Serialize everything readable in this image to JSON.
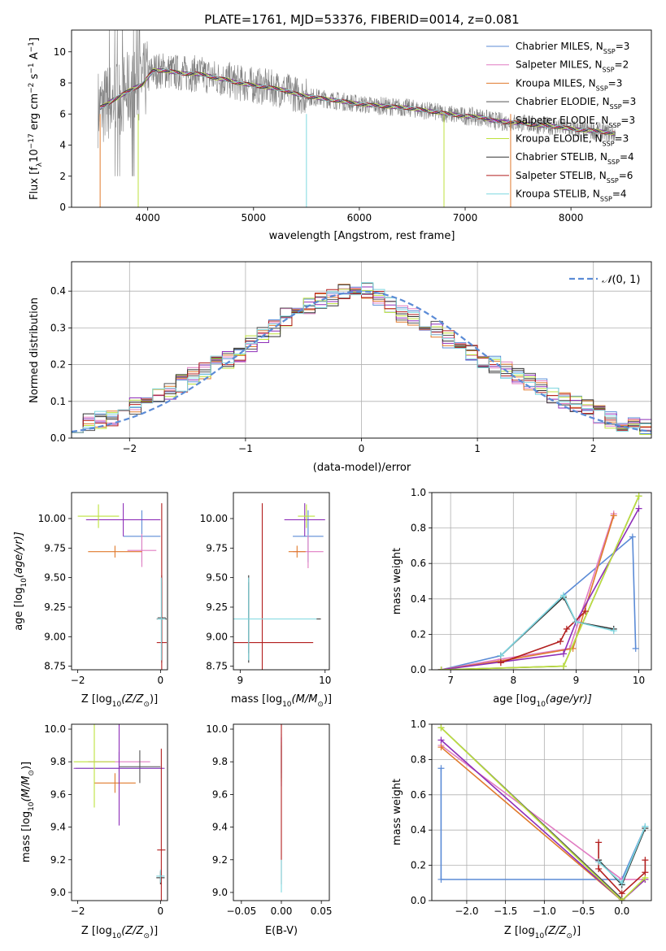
{
  "figure_title": "PLATE=1761, MJD=53376, FIBERID=0014, z=0.081",
  "colors": {
    "Chabrier MILES": "#5b8bd6",
    "Salpeter MILES": "#e07cc2",
    "Kroupa MILES": "#e07a2c",
    "Chabrier ELODIE": "#555555",
    "Salpeter ELODIE": "#8e2eb8",
    "Kroupa ELODIE": "#bde13c",
    "Chabrier STELIB": "#333333",
    "Salpeter STELIB": "#b21e1e",
    "Kroupa STELIB": "#7fd8e0",
    "data": "#808080",
    "normal": "#5b8bd6"
  },
  "chart_data": [
    {
      "id": "spectrum",
      "type": "line",
      "xlabel": "wavelength [Angstrom, rest frame]",
      "ylabel": "Flux [f",
      "ylabel_sub": "λ",
      "ylabel_rest": "10",
      "ylabel_sup1": "−17",
      "ylabel_mid": " erg cm",
      "ylabel_sup2": "−2",
      "ylabel_mid2": " s",
      "ylabel_sup3": "−1",
      "ylabel_mid3": " A",
      "ylabel_sup4": "−1",
      "ylabel_end": "]",
      "xlim": [
        3280,
        8760
      ],
      "ylim": [
        0,
        11.4
      ],
      "xticks": [
        4000,
        5000,
        6000,
        7000,
        8000
      ],
      "yticks": [
        0,
        2,
        4,
        6,
        8,
        10
      ],
      "legend_position": "top-right",
      "legend": [
        {
          "name": "Chabrier MILES",
          "sub": "SSP",
          "n": "=3"
        },
        {
          "name": "Salpeter MILES",
          "sub": "SSP",
          "n": "=2"
        },
        {
          "name": "Kroupa MILES",
          "sub": "SSP",
          "n": "=3"
        },
        {
          "name": "Chabrier ELODIE",
          "sub": "SSP",
          "n": "=3"
        },
        {
          "name": "Salpeter ELODIE",
          "sub": "SSP",
          "n": "=3"
        },
        {
          "name": "Kroupa ELODIE",
          "sub": "SSP",
          "n": "=3"
        },
        {
          "name": "Chabrier STELIB",
          "sub": "SSP",
          "n": "=4"
        },
        {
          "name": "Salpeter STELIB",
          "sub": "SSP",
          "n": "=6"
        },
        {
          "name": "Kroupa STELIB",
          "sub": "SSP",
          "n": "=4"
        }
      ],
      "model_curve": {
        "x": [
          3550,
          3650,
          3750,
          3850,
          3950,
          4050,
          4150,
          4250,
          4350,
          4450,
          4550,
          4650,
          4750,
          4850,
          4950,
          5050,
          5150,
          5250,
          5350,
          5450,
          5550,
          5650,
          5750,
          5850,
          5950,
          6050,
          6150,
          6250,
          6350,
          6450,
          6550,
          6650,
          6750,
          6850,
          6950,
          7050,
          7150,
          7250,
          7350,
          7450,
          7550,
          7650,
          7750,
          7850,
          7950,
          8050,
          8150,
          8250,
          8350,
          8450
        ],
        "y": [
          6.4,
          6.8,
          7.2,
          7.6,
          7.9,
          8.8,
          8.8,
          8.7,
          8.6,
          8.6,
          8.5,
          8.3,
          8.2,
          8.0,
          7.9,
          7.8,
          7.7,
          7.6,
          7.4,
          7.2,
          7.1,
          7.0,
          6.9,
          6.8,
          6.7,
          6.6,
          6.55,
          6.5,
          6.45,
          6.4,
          6.3,
          6.2,
          6.1,
          6.0,
          5.9,
          5.85,
          5.8,
          5.6,
          5.5,
          5.45,
          5.4,
          5.3,
          5.25,
          5.2,
          5.1,
          5.0,
          4.95,
          4.9,
          4.8,
          4.7
        ]
      }
    },
    {
      "id": "residuals",
      "type": "histogram",
      "xlabel": "(data-model)/error",
      "ylabel": "Normed distribution",
      "xlim": [
        -2.5,
        2.5
      ],
      "ylim": [
        0,
        0.48
      ],
      "xticks": [
        -2,
        -1,
        0,
        1,
        2
      ],
      "yticks": [
        0.0,
        0.1,
        0.2,
        0.3,
        0.4
      ],
      "grid": true,
      "legend_position": "top-right",
      "normal_label": "(0, 1)",
      "bin_edges": [
        -2.5,
        -2.4,
        -2.3,
        -2.2,
        -2.1,
        -2.0,
        -1.9,
        -1.8,
        -1.7,
        -1.6,
        -1.5,
        -1.4,
        -1.3,
        -1.2,
        -1.1,
        -1.0,
        -0.9,
        -0.8,
        -0.7,
        -0.6,
        -0.5,
        -0.4,
        -0.3,
        -0.2,
        -0.1,
        0.0,
        0.1,
        0.2,
        0.3,
        0.4,
        0.5,
        0.6,
        0.7,
        0.8,
        0.9,
        1.0,
        1.1,
        1.2,
        1.3,
        1.4,
        1.5,
        1.6,
        1.7,
        1.8,
        1.9,
        2.0,
        2.1,
        2.2,
        2.3,
        2.4,
        2.5
      ],
      "base_heights": [
        0.04,
        0.045,
        0.05,
        0.055,
        0.07,
        0.085,
        0.1,
        0.115,
        0.13,
        0.15,
        0.17,
        0.185,
        0.2,
        0.215,
        0.23,
        0.255,
        0.28,
        0.3,
        0.33,
        0.35,
        0.36,
        0.37,
        0.385,
        0.395,
        0.4,
        0.4,
        0.38,
        0.36,
        0.34,
        0.33,
        0.31,
        0.295,
        0.27,
        0.25,
        0.23,
        0.21,
        0.2,
        0.185,
        0.17,
        0.155,
        0.14,
        0.12,
        0.1,
        0.09,
        0.08,
        0.065,
        0.05,
        0.04,
        0.035,
        0.03
      ]
    },
    {
      "id": "age_vs_Z",
      "type": "errorbar",
      "xlabel": "Z [log",
      "xlabel_sub": "10",
      "xlabel_rest": "(Z/Z",
      "xlabel_sub2": "⊙",
      "xlabel_end": ")]",
      "ylabel": "age  [log",
      "ylabel_sub": "10",
      "ylabel_rest": "(age/yr)]",
      "xlim": [
        -2.15,
        0.17
      ],
      "ylim": [
        8.72,
        10.22
      ],
      "xticks": [
        -2,
        0
      ],
      "yticks": [
        8.75,
        9.0,
        9.25,
        9.5,
        9.75,
        10.0
      ],
      "points": [
        {
          "model": "Chabrier MILES",
          "x": -0.45,
          "y": 9.85,
          "xerr": 0.45,
          "yerr": 0.22
        },
        {
          "model": "Salpeter MILES",
          "x": -0.45,
          "y": 9.73,
          "xerr": 0.35,
          "yerr": 0.14
        },
        {
          "model": "Kroupa MILES",
          "x": -1.1,
          "y": 9.72,
          "xerr": 0.65,
          "yerr": 0.05
        },
        {
          "model": "Chabrier ELODIE",
          "x": 0.03,
          "y": 9.16,
          "xerr": 0.1,
          "yerr": 0.3
        },
        {
          "model": "Salpeter ELODIE",
          "x": -0.9,
          "y": 9.99,
          "xerr": 0.9,
          "yerr": 0.14
        },
        {
          "model": "Kroupa ELODIE",
          "x": -1.5,
          "y": 10.02,
          "xerr": 0.5,
          "yerr": 0.1
        },
        {
          "model": "Chabrier STELIB",
          "x": 0.03,
          "y": 9.15,
          "xerr": 0.12,
          "yerr": 0.37
        },
        {
          "model": "Salpeter STELIB",
          "x": 0.03,
          "y": 8.95,
          "xerr": 0.12,
          "yerr": 1.18
        },
        {
          "model": "Kroupa STELIB",
          "x": 0.02,
          "y": 9.15,
          "xerr": 0.1,
          "yerr": 0.35
        }
      ]
    },
    {
      "id": "age_vs_mass",
      "type": "errorbar",
      "xlabel": "mass [log",
      "xlabel_sub": "10",
      "xlabel_rest": "(M/M",
      "xlabel_sub2": "⊙",
      "xlabel_end": ")]",
      "xlim": [
        8.92,
        10.05
      ],
      "ylim": [
        8.72,
        10.22
      ],
      "xticks": [
        9,
        10
      ],
      "yticks": [
        8.75,
        9.0,
        9.25,
        9.5,
        9.75,
        10.0
      ],
      "points": [
        {
          "model": "Chabrier MILES",
          "x": 9.8,
          "y": 9.85,
          "xerr": 0.18,
          "yerr": 0.22
        },
        {
          "model": "Salpeter MILES",
          "x": 9.8,
          "y": 9.72,
          "xerr": 0.18,
          "yerr": 0.14
        },
        {
          "model": "Kroupa MILES",
          "x": 9.67,
          "y": 9.72,
          "xerr": 0.1,
          "yerr": 0.05
        },
        {
          "model": "Chabrier ELODIE",
          "x": 9.1,
          "y": 9.16,
          "xerr": 0.0,
          "yerr": 0.3
        },
        {
          "model": "Salpeter ELODIE",
          "x": 9.76,
          "y": 9.99,
          "xerr": 0.24,
          "yerr": 0.14
        },
        {
          "model": "Kroupa ELODIE",
          "x": 9.78,
          "y": 10.02,
          "xerr": 0.1,
          "yerr": 0.1
        },
        {
          "model": "Chabrier STELIB",
          "x": 9.1,
          "y": 9.15,
          "xerr": 0.85,
          "yerr": 0.37
        },
        {
          "model": "Salpeter STELIB",
          "x": 9.26,
          "y": 8.95,
          "xerr": 0.6,
          "yerr": 1.18
        },
        {
          "model": "Kroupa STELIB",
          "x": 9.1,
          "y": 9.15,
          "xerr": 0.8,
          "yerr": 0.35
        }
      ]
    },
    {
      "id": "weight_vs_age",
      "type": "line",
      "xlabel": "age  [log",
      "xlabel_sub": "10",
      "xlabel_rest": "(age/yr)]",
      "ylabel": "mass weight",
      "xlim": [
        6.7,
        10.2
      ],
      "ylim": [
        0,
        1.0
      ],
      "xticks": [
        7,
        8,
        9,
        10
      ],
      "yticks": [
        0.0,
        0.2,
        0.4,
        0.6,
        0.8,
        1.0
      ],
      "grid": true,
      "series": [
        {
          "model": "Chabrier MILES",
          "x": [
            6.85,
            7.8,
            8.8,
            9.9,
            9.95
          ],
          "y": [
            0.0,
            0.08,
            0.42,
            0.75,
            0.12
          ]
        },
        {
          "model": "Salpeter MILES",
          "x": [
            6.85,
            7.8,
            8.9,
            9.6
          ],
          "y": [
            0.0,
            0.06,
            0.12,
            0.88
          ]
        },
        {
          "model": "Kroupa MILES",
          "x": [
            6.85,
            7.8,
            8.95,
            9.6
          ],
          "y": [
            0.0,
            0.05,
            0.12,
            0.87
          ]
        },
        {
          "model": "Chabrier ELODIE",
          "x": [
            6.85,
            8.8,
            10.0
          ],
          "y": [
            0.0,
            0.02,
            0.98
          ]
        },
        {
          "model": "Salpeter ELODIE",
          "x": [
            6.85,
            8.8,
            9.0,
            10.0
          ],
          "y": [
            0.0,
            0.09,
            0.27,
            0.91
          ]
        },
        {
          "model": "Kroupa ELODIE",
          "x": [
            6.85,
            8.8,
            10.0
          ],
          "y": [
            0.0,
            0.02,
            0.98
          ]
        },
        {
          "model": "Chabrier STELIB",
          "x": [
            7.8,
            8.8,
            9.0,
            9.6
          ],
          "y": [
            0.08,
            0.41,
            0.27,
            0.23
          ]
        },
        {
          "model": "Salpeter STELIB",
          "x": [
            7.8,
            8.75,
            8.85,
            9.15
          ],
          "y": [
            0.04,
            0.16,
            0.23,
            0.33
          ]
        },
        {
          "model": "Kroupa STELIB",
          "x": [
            7.8,
            8.8,
            9.0,
            9.6
          ],
          "y": [
            0.08,
            0.42,
            0.27,
            0.22
          ]
        }
      ]
    },
    {
      "id": "mass_vs_Z",
      "type": "errorbar",
      "xlabel": "Z [log",
      "xlabel_sub": "10",
      "xlabel_rest": "(Z/Z",
      "xlabel_sub2": "⊙",
      "xlabel_end": ")]",
      "ylabel": "mass [log",
      "ylabel_sub": "10",
      "ylabel_rest": "(M/M",
      "ylabel_sub2": "⊙",
      "ylabel_end": ")]",
      "xlim": [
        -2.15,
        0.17
      ],
      "ylim": [
        8.95,
        10.03
      ],
      "xticks": [
        -2,
        0
      ],
      "yticks": [
        9.0,
        9.2,
        9.4,
        9.6,
        9.8,
        10.0
      ],
      "points": [
        {
          "model": "Chabrier MILES",
          "x": -1.0,
          "y": 9.76,
          "xerr": 1.05,
          "yerr": 0.1
        },
        {
          "model": "Salpeter MILES",
          "x": -1.0,
          "y": 9.8,
          "xerr": 0.75,
          "yerr": 0.06
        },
        {
          "model": "Kroupa MILES",
          "x": -1.1,
          "y": 9.67,
          "xerr": 0.5,
          "yerr": 0.06
        },
        {
          "model": "Chabrier ELODIE",
          "x": -0.5,
          "y": 9.77,
          "xerr": 0.5,
          "yerr": 0.1
        },
        {
          "model": "Salpeter ELODIE",
          "x": -1.0,
          "y": 9.76,
          "xerr": 1.1,
          "yerr": 0.35
        },
        {
          "model": "Kroupa ELODIE",
          "x": -1.6,
          "y": 9.8,
          "xerr": 0.5,
          "yerr": 0.28
        },
        {
          "model": "Chabrier STELIB",
          "x": 0.0,
          "y": 9.09,
          "xerr": 0.1,
          "yerr": 0.04
        },
        {
          "model": "Salpeter STELIB",
          "x": 0.02,
          "y": 9.26,
          "xerr": 0.1,
          "yerr": 0.62
        },
        {
          "model": "Kroupa STELIB",
          "x": 0.0,
          "y": 9.1,
          "xerr": 0.1,
          "yerr": 0.04
        }
      ]
    },
    {
      "id": "mass_vs_ebv",
      "type": "errorbar",
      "xlabel": "E(B-V)",
      "xlim": [
        -0.06,
        0.06
      ],
      "ylim": [
        8.95,
        10.03
      ],
      "xticks": [
        -0.05,
        0.0,
        0.05
      ],
      "yticks": [
        9.0,
        9.2,
        9.4,
        9.6,
        9.8,
        10.0
      ],
      "points": [
        {
          "model": "Chabrier MILES",
          "x": 0.0,
          "y": 9.8,
          "xerr": 0.0,
          "yerr": 0.1
        },
        {
          "model": "Salpeter MILES",
          "x": 0.0,
          "y": 9.85,
          "xerr": 0.0,
          "yerr": 0.12
        },
        {
          "model": "Salpeter ELODIE",
          "x": 0.0,
          "y": 9.8,
          "xerr": 0.0,
          "yerr": 0.15
        },
        {
          "model": "Kroupa ELODIE",
          "x": 0.0,
          "y": 9.8,
          "xerr": 0.0,
          "yerr": 0.12
        },
        {
          "model": "Salpeter STELIB",
          "x": 0.0,
          "y": 9.55,
          "xerr": 0.0,
          "yerr": 0.5
        },
        {
          "model": "Kroupa STELIB",
          "x": 0.0,
          "y": 9.1,
          "xerr": 0.0,
          "yerr": 0.1
        }
      ]
    },
    {
      "id": "weight_vs_Z",
      "type": "line",
      "xlabel": "Z [log",
      "xlabel_sub": "10",
      "xlabel_rest": "(Z/Z",
      "xlabel_sub2": "⊙",
      "xlabel_end": ")]",
      "ylabel": "mass weight",
      "xlim": [
        -2.45,
        0.38
      ],
      "ylim": [
        0,
        1.0
      ],
      "xticks": [
        -2.0,
        -1.5,
        -1.0,
        -0.5,
        0.0
      ],
      "yticks": [
        0.0,
        0.2,
        0.4,
        0.6,
        0.8,
        1.0
      ],
      "grid": true,
      "series": [
        {
          "model": "Chabrier MILES",
          "x": [
            -2.33,
            -2.33,
            0.0,
            0.3
          ],
          "y": [
            0.75,
            0.12,
            0.12,
            0.42
          ]
        },
        {
          "model": "Salpeter MILES",
          "x": [
            -2.33,
            0.0,
            0.3
          ],
          "y": [
            0.88,
            0.12,
            0.12
          ]
        },
        {
          "model": "Kroupa MILES",
          "x": [
            -2.33,
            0.0,
            0.3
          ],
          "y": [
            0.87,
            0.0,
            0.12
          ]
        },
        {
          "model": "Chabrier ELODIE",
          "x": [
            -2.33,
            0.0
          ],
          "y": [
            0.98,
            0.01
          ]
        },
        {
          "model": "Salpeter ELODIE",
          "x": [
            -2.33,
            0.0,
            0.3
          ],
          "y": [
            0.91,
            0.0,
            0.12
          ]
        },
        {
          "model": "Kroupa ELODIE",
          "x": [
            -2.33,
            0.0,
            0.3
          ],
          "y": [
            0.98,
            0.0,
            0.13
          ]
        },
        {
          "model": "Chabrier STELIB",
          "x": [
            -0.3,
            0.0,
            0.3
          ],
          "y": [
            0.23,
            0.09,
            0.41
          ]
        },
        {
          "model": "Salpeter STELIB",
          "x": [
            -0.3,
            -0.3,
            0.0,
            0.3,
            0.3
          ],
          "y": [
            0.33,
            0.18,
            0.04,
            0.16,
            0.23
          ]
        },
        {
          "model": "Kroupa STELIB",
          "x": [
            -0.3,
            0.0,
            0.3
          ],
          "y": [
            0.22,
            0.1,
            0.42
          ]
        }
      ]
    }
  ]
}
